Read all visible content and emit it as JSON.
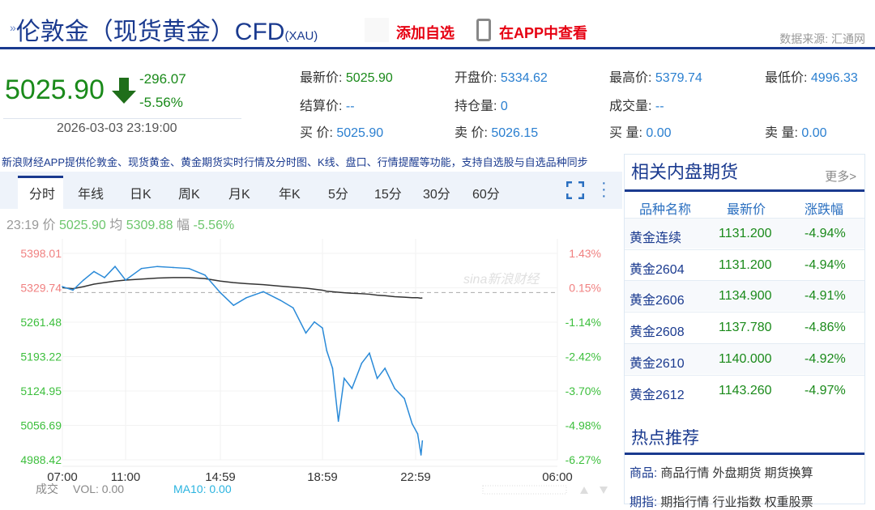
{
  "header": {
    "title": "伦敦金（现货黄金）CFD",
    "symbol": "(XAU)",
    "add_watch": "添加自选",
    "view_app": "在APP中查看",
    "source": "数据来源: 汇通网"
  },
  "quote": {
    "price": "5025.90",
    "change": "-296.07",
    "change_pct": "-5.56%",
    "time": "2026-03-03 23:19:00",
    "direction": "down"
  },
  "fields": [
    {
      "label": "最新价:",
      "value": "5025.90",
      "style": "g"
    },
    {
      "label": "开盘价:",
      "value": "5334.62",
      "style": "v"
    },
    {
      "label": "最高价:",
      "value": "5379.74",
      "style": "v"
    },
    {
      "label": "最低价:",
      "value": "4996.33",
      "style": "v"
    },
    {
      "label": "结算价:",
      "value": "--",
      "style": "v"
    },
    {
      "label": "持仓量:",
      "value": "0",
      "style": "v"
    },
    {
      "label": "成交量:",
      "value": "--",
      "style": "v"
    },
    {
      "label": "",
      "value": "",
      "style": "v"
    },
    {
      "label": "买  价:",
      "value": "5025.90",
      "style": "v"
    },
    {
      "label": "卖  价:",
      "value": "5026.15",
      "style": "v"
    },
    {
      "label": "买  量:",
      "value": "0.00",
      "style": "v"
    },
    {
      "label": "卖  量:",
      "value": "0.00",
      "style": "v"
    }
  ],
  "promo": "新浪财经APP提供伦敦金、现货黄金、黄金期货实时行情及分时图、K线、盘口、行情提醒等功能，支持自选股与自选品种同步",
  "tabs": [
    "分时",
    "年线",
    "日K",
    "周K",
    "月K",
    "年K",
    "5分",
    "15分",
    "30分",
    "60分"
  ],
  "chart_quote": {
    "time": "23:19",
    "price_label": "价",
    "price": "5025.90",
    "avg_label": "均",
    "avg": "5309.88",
    "amp_label": "幅",
    "amp": "-5.56%"
  },
  "volume": {
    "label": "成交",
    "vol": "VOL: 0.00",
    "ma10": "MA10: 0.00"
  },
  "chart_data": {
    "type": "line",
    "y_ticks": [
      "5398.01",
      "5329.74",
      "5261.48",
      "5193.22",
      "5124.95",
      "5056.69",
      "4988.42"
    ],
    "pct_ticks": [
      "1.43%",
      "0.15%",
      "-1.14%",
      "-2.42%",
      "-3.70%",
      "-4.98%",
      "-6.27%"
    ],
    "x_ticks": [
      "07:00",
      "11:00",
      "14:59",
      "18:59",
      "22:59",
      "06:00"
    ],
    "ylim": [
      4988.42,
      5398.01
    ],
    "prev_close": 5321.97,
    "colors": {
      "price": "#2a8ad8",
      "avg": "#333333",
      "up": "#f08080",
      "down": "#3cbf3c"
    },
    "watermark": "sina新浪财经",
    "series": [
      {
        "x": "07:00",
        "price": 5332,
        "avg": 5330
      },
      {
        "x": "07:40",
        "price": 5325,
        "avg": 5328
      },
      {
        "x": "08:20",
        "price": 5345,
        "avg": 5332
      },
      {
        "x": "09:00",
        "price": 5362,
        "avg": 5337
      },
      {
        "x": "09:40",
        "price": 5350,
        "avg": 5340
      },
      {
        "x": "10:20",
        "price": 5372,
        "avg": 5343
      },
      {
        "x": "11:00",
        "price": 5345,
        "avg": 5345
      },
      {
        "x": "11:40",
        "price": 5368,
        "avg": 5347
      },
      {
        "x": "12:20",
        "price": 5372,
        "avg": 5349
      },
      {
        "x": "13:00",
        "price": 5370,
        "avg": 5350
      },
      {
        "x": "13:40",
        "price": 5368,
        "avg": 5350
      },
      {
        "x": "14:20",
        "price": 5355,
        "avg": 5348
      },
      {
        "x": "14:59",
        "price": 5320,
        "avg": 5343
      },
      {
        "x": "15:30",
        "price": 5295,
        "avg": 5340
      },
      {
        "x": "16:00",
        "price": 5310,
        "avg": 5338
      },
      {
        "x": "16:40",
        "price": 5322,
        "avg": 5336
      },
      {
        "x": "17:20",
        "price": 5305,
        "avg": 5333
      },
      {
        "x": "17:50",
        "price": 5290,
        "avg": 5331
      },
      {
        "x": "18:20",
        "price": 5240,
        "avg": 5329
      },
      {
        "x": "18:40",
        "price": 5262,
        "avg": 5327
      },
      {
        "x": "18:59",
        "price": 5250,
        "avg": 5325
      },
      {
        "x": "19:10",
        "price": 5205,
        "avg": 5323
      },
      {
        "x": "19:25",
        "price": 5170,
        "avg": 5322
      },
      {
        "x": "19:40",
        "price": 5065,
        "avg": 5321
      },
      {
        "x": "19:55",
        "price": 5150,
        "avg": 5320
      },
      {
        "x": "20:15",
        "price": 5130,
        "avg": 5319
      },
      {
        "x": "20:40",
        "price": 5180,
        "avg": 5318
      },
      {
        "x": "21:00",
        "price": 5200,
        "avg": 5317
      },
      {
        "x": "21:20",
        "price": 5150,
        "avg": 5315
      },
      {
        "x": "21:40",
        "price": 5170,
        "avg": 5314
      },
      {
        "x": "22:05",
        "price": 5130,
        "avg": 5312
      },
      {
        "x": "22:30",
        "price": 5110,
        "avg": 5311
      },
      {
        "x": "22:50",
        "price": 5060,
        "avg": 5310
      },
      {
        "x": "23:05",
        "price": 5040,
        "avg": 5310
      },
      {
        "x": "23:15",
        "price": 4998,
        "avg": 5309
      },
      {
        "x": "23:19",
        "price": 5025.9,
        "avg": 5309.88
      }
    ]
  },
  "related": {
    "title": "相关内盘期货",
    "more": "更多>",
    "headers": [
      "品种名称",
      "最新价",
      "涨跌幅"
    ],
    "rows": [
      [
        "黄金连续",
        "1131.200",
        "-4.94%"
      ],
      [
        "黄金2604",
        "1131.200",
        "-4.94%"
      ],
      [
        "黄金2606",
        "1134.900",
        "-4.91%"
      ],
      [
        "黄金2608",
        "1137.780",
        "-4.86%"
      ],
      [
        "黄金2610",
        "1140.000",
        "-4.92%"
      ],
      [
        "黄金2612",
        "1143.260",
        "-4.97%"
      ]
    ]
  },
  "hot": {
    "title": "热点推荐",
    "items": [
      {
        "k": "商品:",
        "v": "商品行情 外盘期货 期货换算"
      },
      {
        "k": "期指:",
        "v": "期指行情 行业指数 权重股票"
      }
    ]
  }
}
